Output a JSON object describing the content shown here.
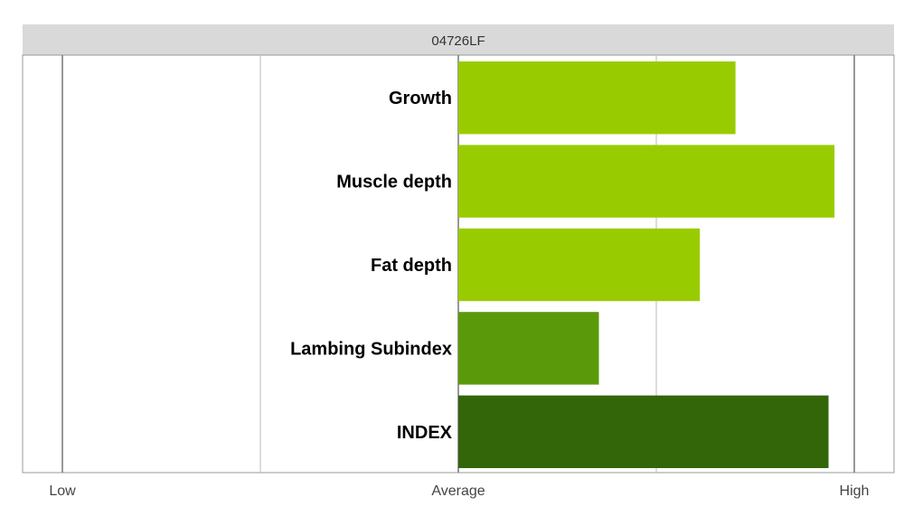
{
  "chart_data": {
    "type": "bar",
    "orientation": "horizontal",
    "title": "04726LF",
    "categories": [
      "Growth",
      "Muscle depth",
      "Fat depth",
      "Lambing Subindex",
      "INDEX"
    ],
    "values": [
      0.7,
      0.95,
      0.61,
      0.355,
      0.935
    ],
    "bar_colors": [
      "#99cc00",
      "#99cc00",
      "#99cc00",
      "#5a9a0a",
      "#336609"
    ],
    "xlim": [
      -1,
      1
    ],
    "tick_values": [
      -1,
      0,
      1
    ],
    "tick_labels": [
      "Low",
      "Average",
      "High"
    ],
    "gridlines": [
      -1,
      -0.5,
      0,
      0.5,
      1
    ],
    "grid": true,
    "xlabel": "",
    "ylabel": ""
  },
  "colors": {
    "header_bg": "#d9d9d9",
    "panel_border": "#999999",
    "grid_major": "#777777",
    "grid_minor": "#bbbbbb"
  }
}
